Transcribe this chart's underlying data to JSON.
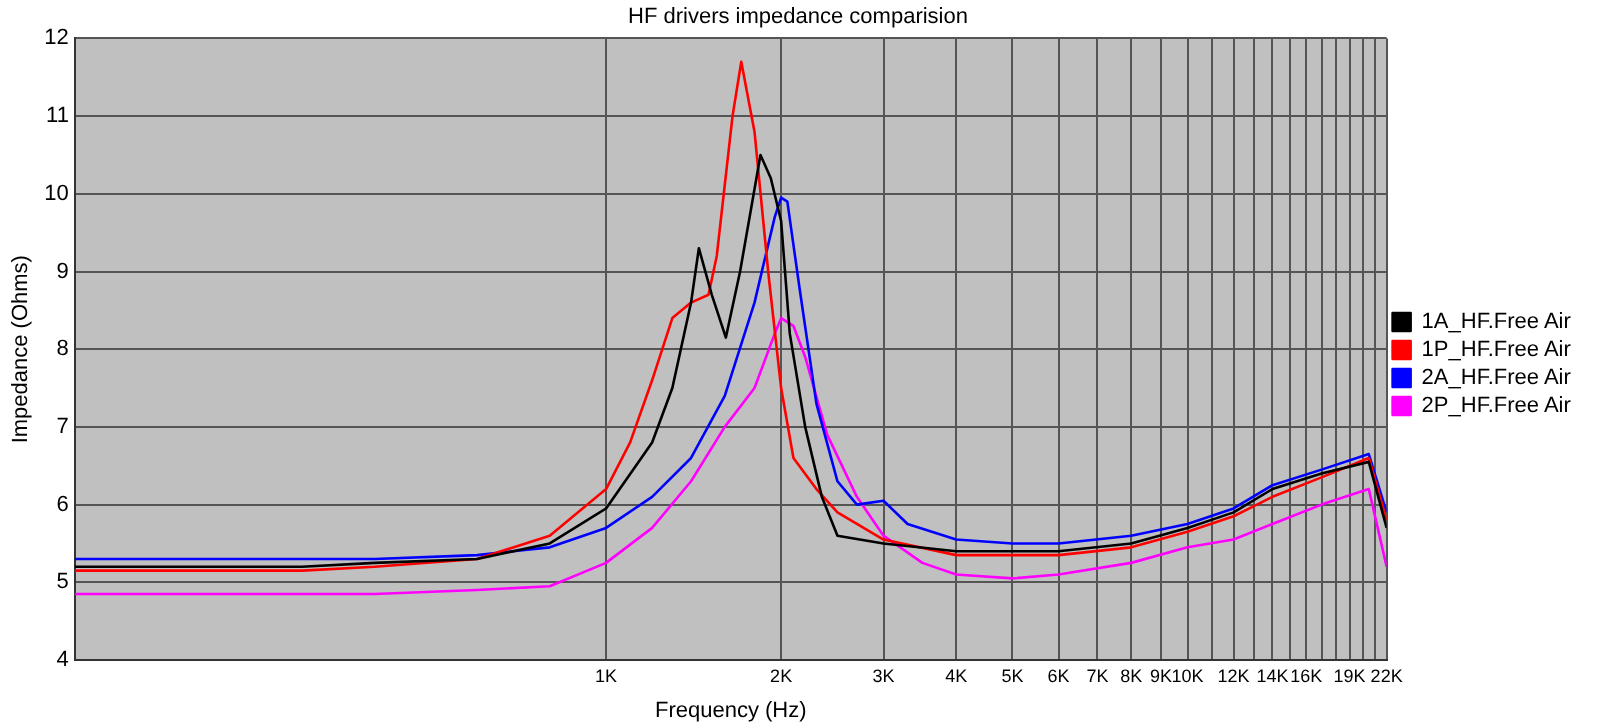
{
  "chart_data": {
    "type": "line",
    "title": "HF drivers impedance comparision",
    "xlabel": "Frequency (Hz)",
    "ylabel": "Impedance (Ohms)",
    "log": "x",
    "grid": true,
    "legend": "right",
    "marker": "none",
    "line_style": "solid",
    "xlim": [
      122,
      22000
    ],
    "ylim": [
      4,
      12
    ],
    "yticks": [
      4,
      5,
      6,
      7,
      8,
      9,
      10,
      11,
      12
    ],
    "xticks": [
      {
        "value": 1000,
        "label": "1K"
      },
      {
        "value": 2000,
        "label": "2K"
      },
      {
        "value": 3000,
        "label": "3K"
      },
      {
        "value": 4000,
        "label": "4K"
      },
      {
        "value": 5000,
        "label": "5K"
      },
      {
        "value": 6000,
        "label": "6K"
      },
      {
        "value": 7000,
        "label": "7K"
      },
      {
        "value": 8000,
        "label": "8K"
      },
      {
        "value": 9000,
        "label": "9K"
      },
      {
        "value": 10000,
        "label": "10K"
      },
      {
        "value": 11000,
        "label": null
      },
      {
        "value": 12000,
        "label": "12K"
      },
      {
        "value": 13000,
        "label": null
      },
      {
        "value": 14000,
        "label": "14K"
      },
      {
        "value": 15000,
        "label": null
      },
      {
        "value": 16000,
        "label": "16K"
      },
      {
        "value": 17000,
        "label": null
      },
      {
        "value": 18000,
        "label": null
      },
      {
        "value": 19000,
        "label": "19K"
      },
      {
        "value": 20000,
        "label": null
      },
      {
        "value": 21000,
        "label": null
      },
      {
        "value": 22000,
        "label": "22K"
      }
    ],
    "series": [
      {
        "name": "1A_HF.Free Air",
        "color": "#000000",
        "x": [
          122,
          200,
          300,
          400,
          600,
          800,
          1000,
          1200,
          1300,
          1400,
          1444,
          1520,
          1607,
          1700,
          1843,
          1920,
          2000,
          2070,
          2200,
          2350,
          2500,
          3000,
          4000,
          5000,
          6000,
          8000,
          10000,
          12000,
          14000,
          17000,
          20500,
          22000
        ],
        "values": [
          5.2,
          5.2,
          5.2,
          5.25,
          5.3,
          5.5,
          5.95,
          6.8,
          7.5,
          8.6,
          9.3,
          8.7,
          8.15,
          9.0,
          10.5,
          10.2,
          9.65,
          8.2,
          7.0,
          6.1,
          5.6,
          5.5,
          5.4,
          5.4,
          5.4,
          5.5,
          5.7,
          5.9,
          6.2,
          6.4,
          6.55,
          5.7
        ]
      },
      {
        "name": "1P_HF.Free Air",
        "color": "#ff0000",
        "x": [
          122,
          200,
          300,
          400,
          600,
          800,
          1000,
          1100,
          1200,
          1300,
          1400,
          1500,
          1550,
          1650,
          1708,
          1800,
          1900,
          2000,
          2100,
          2300,
          2500,
          3000,
          4000,
          5000,
          6000,
          8000,
          10000,
          12000,
          14000,
          17000,
          20500,
          22000
        ],
        "values": [
          5.15,
          5.15,
          5.15,
          5.2,
          5.3,
          5.6,
          6.2,
          6.8,
          7.6,
          8.4,
          8.6,
          8.7,
          9.2,
          11.0,
          11.7,
          10.8,
          9.0,
          7.5,
          6.6,
          6.2,
          5.9,
          5.55,
          5.35,
          5.35,
          5.35,
          5.45,
          5.65,
          5.85,
          6.1,
          6.35,
          6.6,
          5.8
        ]
      },
      {
        "name": "2A_HF.Free Air",
        "color": "#0000ff",
        "x": [
          122,
          200,
          300,
          400,
          600,
          800,
          1000,
          1200,
          1400,
          1600,
          1800,
          1950,
          2000,
          2050,
          2150,
          2300,
          2500,
          2700,
          3000,
          3300,
          4000,
          5000,
          6000,
          8000,
          10000,
          12000,
          14000,
          17000,
          20500,
          22000
        ],
        "values": [
          5.3,
          5.3,
          5.3,
          5.3,
          5.35,
          5.45,
          5.7,
          6.1,
          6.6,
          7.4,
          8.6,
          9.7,
          9.95,
          9.9,
          8.8,
          7.3,
          6.3,
          6.0,
          6.05,
          5.75,
          5.55,
          5.5,
          5.5,
          5.6,
          5.75,
          5.95,
          6.25,
          6.45,
          6.65,
          5.9
        ]
      },
      {
        "name": "2P_HF.Free Air",
        "color": "#ff00ff",
        "x": [
          122,
          200,
          300,
          400,
          600,
          800,
          1000,
          1200,
          1400,
          1600,
          1800,
          1950,
          2000,
          2100,
          2200,
          2400,
          2700,
          3000,
          3500,
          4000,
          5000,
          6000,
          8000,
          10000,
          12000,
          14000,
          17000,
          20500,
          22000
        ],
        "values": [
          4.85,
          4.85,
          4.85,
          4.85,
          4.9,
          4.95,
          5.25,
          5.7,
          6.3,
          7.0,
          7.5,
          8.2,
          8.4,
          8.3,
          7.9,
          6.9,
          6.1,
          5.6,
          5.25,
          5.1,
          5.05,
          5.1,
          5.25,
          5.45,
          5.55,
          5.75,
          6.0,
          6.2,
          5.2
        ]
      }
    ]
  }
}
